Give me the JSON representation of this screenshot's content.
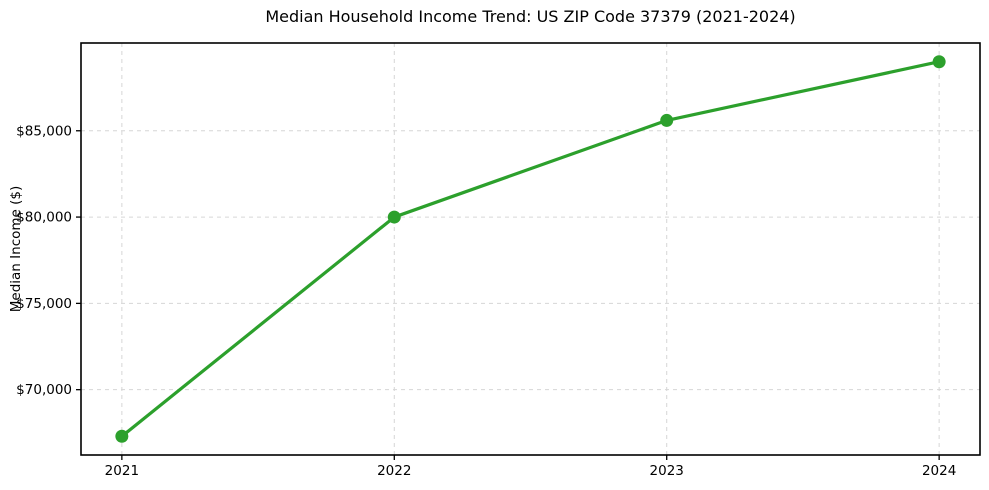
{
  "chart_data": {
    "type": "line",
    "title": "Median Household Income Trend: US ZIP Code 37379 (2021-2024)",
    "xlabel": "",
    "ylabel": "Median Income ($)",
    "x": [
      2021,
      2022,
      2023,
      2024
    ],
    "values": [
      67300,
      80000,
      85600,
      89000
    ],
    "xticks": {
      "values": [
        2021,
        2022,
        2023,
        2024
      ],
      "labels": [
        "2021",
        "2022",
        "2023",
        "2024"
      ]
    },
    "yticks": {
      "values": [
        70000,
        75000,
        80000,
        85000
      ],
      "labels": [
        "$70,000",
        "$75,000",
        "$80,000",
        "$85,000"
      ]
    },
    "xlim": [
      2020.85,
      2024.15
    ],
    "ylim": [
      66215,
      90085
    ],
    "line_color": "#2ca02c",
    "marker": "circle",
    "marker_color": "#2ca02c",
    "grid": {
      "visible": true,
      "style": "dashed",
      "color": "#d6d6d6"
    },
    "legend": {
      "visible": false
    },
    "background": "#ffffff",
    "spine_color": "#000000",
    "tick_color": "#000000"
  }
}
